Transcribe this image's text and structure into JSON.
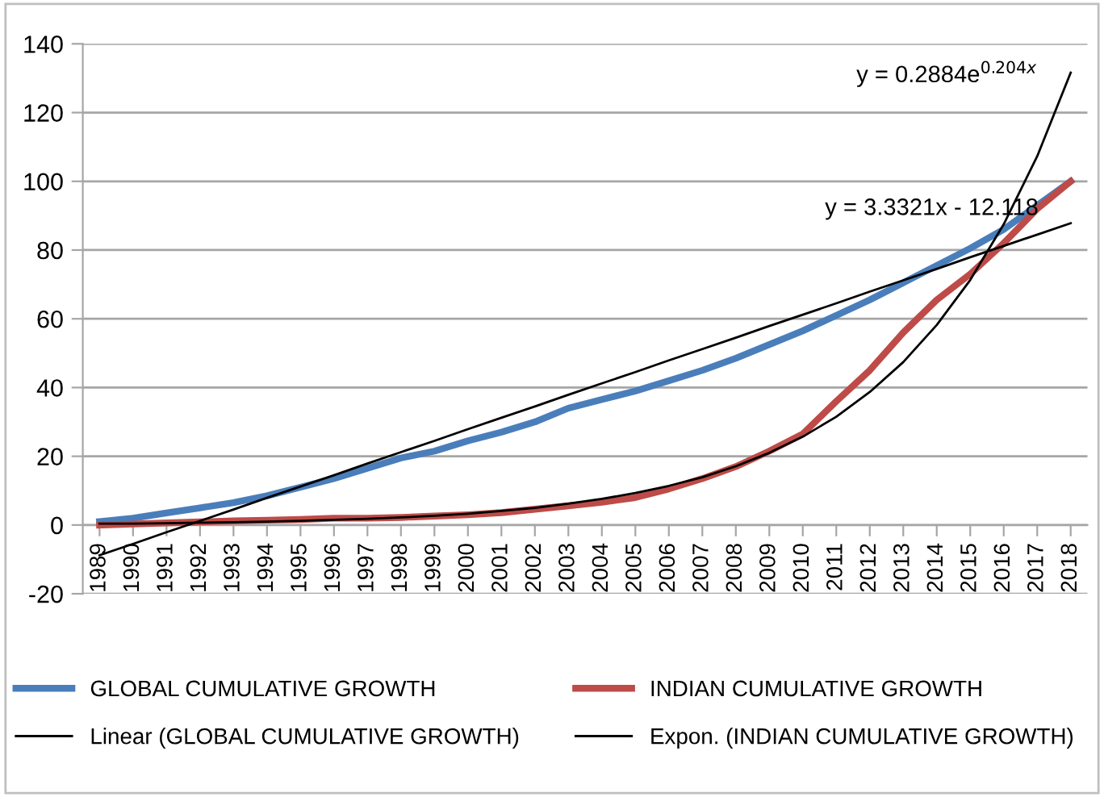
{
  "chart_data": {
    "type": "line",
    "categories": [
      "1989",
      "1990",
      "1991",
      "1992",
      "1993",
      "1994",
      "1995",
      "1996",
      "1997",
      "1998",
      "1999",
      "2000",
      "2001",
      "2002",
      "2003",
      "2004",
      "2005",
      "2006",
      "2007",
      "2008",
      "2009",
      "2010",
      "2011",
      "2012",
      "2013",
      "2014",
      "2015",
      "2016",
      "2017",
      "2018"
    ],
    "series": [
      {
        "name": "GLOBAL CUMULATIVE GROWTH",
        "color": "#4a7ebb",
        "values": [
          1,
          2,
          3.5,
          5,
          6.5,
          8.5,
          11,
          13.5,
          16.5,
          19.5,
          21.5,
          24.5,
          27,
          30,
          34,
          36.5,
          39,
          42,
          45,
          48.5,
          52.5,
          56.5,
          61,
          65.5,
          70.5,
          75.5,
          80.5,
          86,
          93,
          100
        ]
      },
      {
        "name": "INDIAN CUMULATIVE GROWTH",
        "color": "#be4b48",
        "values": [
          0,
          0.3,
          0.6,
          0.9,
          1.2,
          1.4,
          1.6,
          2,
          2,
          2.2,
          2.6,
          3,
          3.6,
          4.6,
          5.6,
          6.6,
          8,
          10.5,
          13.5,
          17,
          21.5,
          26.5,
          36,
          45,
          56,
          65.5,
          73,
          82,
          92,
          100
        ]
      },
      {
        "name": "Linear (GLOBAL CUMULATIVE GROWTH)",
        "color": "#000000",
        "values": [
          -8.8,
          -5.5,
          -2.1,
          1.2,
          4.5,
          7.9,
          11.2,
          14.5,
          17.9,
          21.2,
          24.5,
          27.9,
          31.2,
          34.5,
          37.9,
          41.2,
          44.5,
          47.9,
          51.2,
          54.5,
          57.9,
          61.2,
          64.5,
          67.9,
          71.2,
          74.5,
          77.9,
          81.2,
          84.5,
          87.8
        ]
      },
      {
        "name": "Expon. (INDIAN CUMULATIVE GROWTH)",
        "color": "#000000",
        "values": [
          0.4,
          0.4,
          0.5,
          0.7,
          0.8,
          1,
          1.2,
          1.5,
          1.8,
          2.2,
          2.7,
          3.3,
          4.1,
          5,
          6.2,
          7.6,
          9.3,
          11.4,
          13.9,
          17.1,
          21,
          25.7,
          31.5,
          38.7,
          47.4,
          58.2,
          71.3,
          87.5,
          107.3,
          131.6
        ]
      }
    ],
    "ylim": [
      -20,
      140
    ],
    "yticks": [
      -20,
      0,
      20,
      40,
      60,
      80,
      100,
      120,
      140
    ],
    "grid": "y",
    "legend": "bottom",
    "annotations": [
      "y = 0.2884e$^{0.204x}$",
      "y = 3.3321x - 12.118"
    ]
  }
}
